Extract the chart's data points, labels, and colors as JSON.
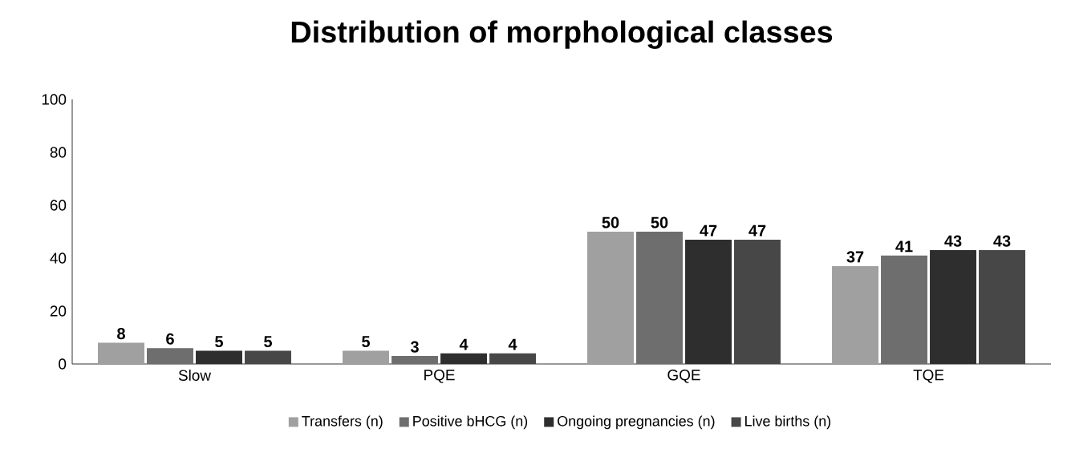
{
  "chart_data": {
    "type": "bar",
    "title": "Distribution of morphological classes",
    "categories": [
      "Slow",
      "PQE",
      "GQE",
      "TQE"
    ],
    "series": [
      {
        "name": "Transfers (n)",
        "color": "#a0a0a0",
        "values": [
          8,
          5,
          50,
          37
        ]
      },
      {
        "name": "Positive bHCG (n)",
        "color": "#6e6e6e",
        "values": [
          6,
          3,
          50,
          41
        ]
      },
      {
        "name": "Ongoing pregnancies (n)",
        "color": "#2e2e2e",
        "values": [
          5,
          4,
          47,
          43
        ]
      },
      {
        "name": "Live births (n)",
        "color": "#474747",
        "values": [
          5,
          4,
          47,
          43
        ]
      }
    ],
    "ylim": [
      0,
      100
    ],
    "yticks": [
      0,
      20,
      40,
      60,
      80,
      100
    ],
    "data_labels": true,
    "legend": "bottom"
  }
}
